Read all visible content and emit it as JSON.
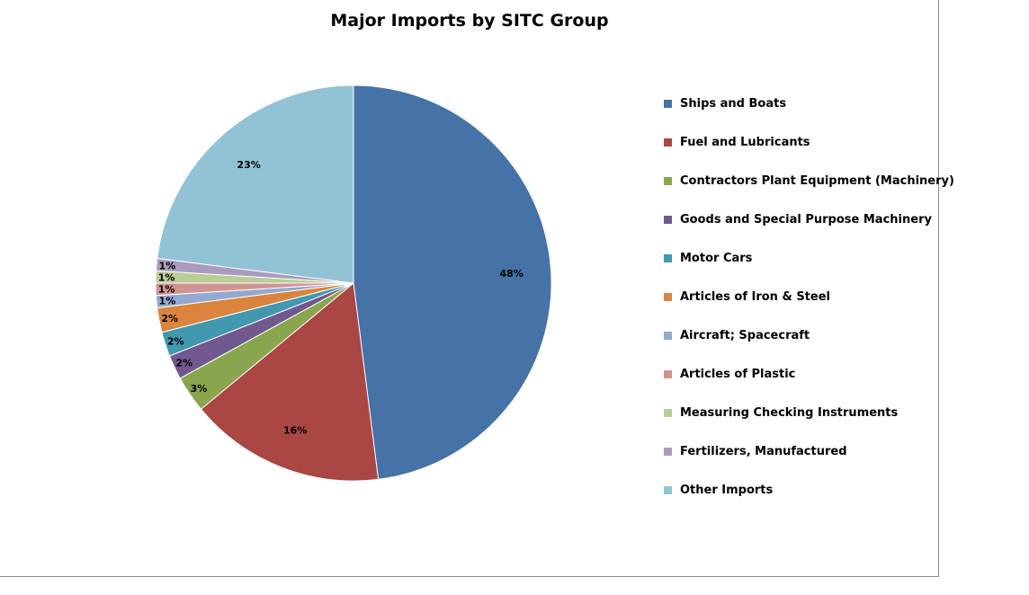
{
  "chart_data": {
    "type": "pie",
    "title": "Major Imports by SITC Group",
    "legend_position": "right",
    "slices": [
      {
        "label": "Ships and Boats",
        "value": 48,
        "display": "48%",
        "color": "#4572a7"
      },
      {
        "label": "Fuel and Lubricants",
        "value": 16,
        "display": "16%",
        "color": "#aa4643"
      },
      {
        "label": "Contractors Plant Equipment (Machinery)",
        "value": 3,
        "display": "3%",
        "color": "#89a54e"
      },
      {
        "label": "Goods and Special Purpose Machinery",
        "value": 2,
        "display": "2%",
        "color": "#71588f"
      },
      {
        "label": "Motor Cars",
        "value": 2,
        "display": "2%",
        "color": "#4198af"
      },
      {
        "label": "Articles of Iron & Steel",
        "value": 2,
        "display": "2%",
        "color": "#db843d"
      },
      {
        "label": "Aircraft; Spacecraft",
        "value": 1,
        "display": "1%",
        "color": "#93a9cf"
      },
      {
        "label": "Articles of Plastic",
        "value": 1,
        "display": "1%",
        "color": "#d19392"
      },
      {
        "label": "Measuring Checking Instruments",
        "value": 1,
        "display": "1%",
        "color": "#b9cd96"
      },
      {
        "label": "Fertilizers, Manufactured",
        "value": 1,
        "display": "1%",
        "color": "#a99bbd"
      },
      {
        "label": "Other Imports",
        "value": 23,
        "display": "23%",
        "color": "#92c3d4"
      }
    ]
  }
}
